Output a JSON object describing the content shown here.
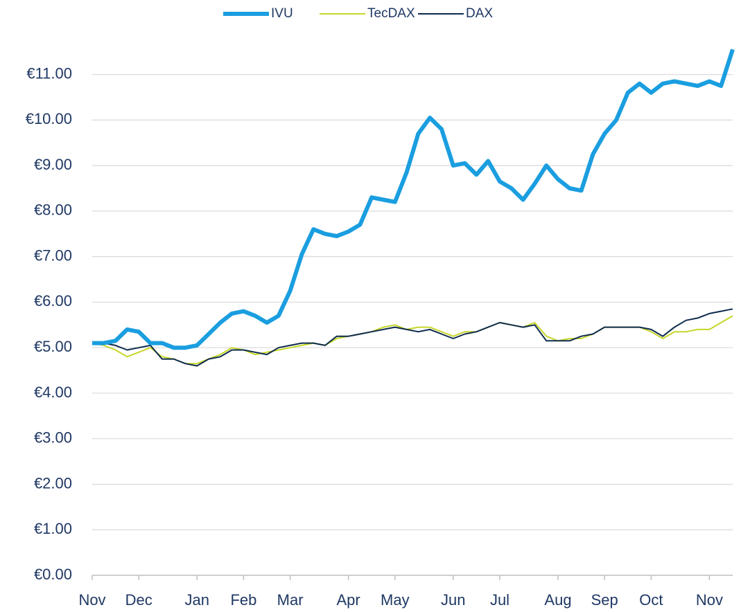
{
  "chart_data": {
    "type": "line",
    "categories": [
      "Nov",
      null,
      null,
      null,
      "Dec",
      null,
      null,
      null,
      null,
      "Jan",
      null,
      null,
      null,
      "Feb",
      null,
      null,
      null,
      "Mar",
      null,
      null,
      null,
      null,
      "Apr",
      null,
      null,
      null,
      "May",
      null,
      null,
      null,
      null,
      "Jun",
      null,
      null,
      null,
      "Jul",
      null,
      null,
      null,
      null,
      "Aug",
      null,
      null,
      null,
      "Sep",
      null,
      null,
      null,
      "Oct",
      null,
      null,
      null,
      null,
      "Nov",
      null,
      null
    ],
    "series": [
      {
        "name": "IVU",
        "color": "#1a9ee0",
        "values": [
          5.1,
          5.1,
          5.15,
          5.4,
          5.35,
          5.1,
          5.1,
          5.0,
          5.0,
          5.05,
          5.3,
          5.55,
          5.75,
          5.8,
          5.7,
          5.55,
          5.7,
          6.25,
          7.05,
          7.6,
          7.5,
          7.45,
          7.55,
          7.7,
          8.3,
          8.25,
          8.2,
          8.85,
          9.7,
          10.05,
          9.8,
          9.0,
          9.05,
          8.8,
          9.1,
          8.65,
          8.5,
          8.25,
          8.6,
          9.0,
          8.7,
          8.5,
          8.45,
          9.25,
          9.7,
          10.0,
          10.6,
          10.8,
          10.6,
          10.8,
          10.85,
          10.8,
          10.75,
          10.85,
          10.75,
          11.55
        ]
      },
      {
        "name": "TecDAX",
        "color": "#c5d628",
        "values": [
          5.1,
          5.05,
          4.95,
          4.8,
          4.9,
          5.0,
          4.8,
          4.75,
          4.65,
          4.65,
          4.75,
          4.85,
          5.0,
          4.95,
          4.85,
          4.9,
          4.95,
          5.0,
          5.05,
          5.1,
          5.05,
          5.2,
          5.25,
          5.3,
          5.35,
          5.45,
          5.5,
          5.4,
          5.45,
          5.45,
          5.35,
          5.25,
          5.35,
          5.35,
          5.45,
          5.55,
          5.5,
          5.45,
          5.55,
          5.25,
          5.15,
          5.2,
          5.2,
          5.3,
          5.45,
          5.45,
          5.45,
          5.45,
          5.35,
          5.2,
          5.35,
          5.35,
          5.4,
          5.4,
          5.55,
          5.7
        ]
      },
      {
        "name": "DAX",
        "color": "#0d2a4d",
        "values": [
          5.1,
          5.1,
          5.05,
          4.95,
          5.0,
          5.05,
          4.75,
          4.75,
          4.65,
          4.6,
          4.75,
          4.8,
          4.95,
          4.95,
          4.9,
          4.85,
          5.0,
          5.05,
          5.1,
          5.1,
          5.05,
          5.25,
          5.25,
          5.3,
          5.35,
          5.4,
          5.45,
          5.4,
          5.35,
          5.4,
          5.3,
          5.2,
          5.3,
          5.35,
          5.45,
          5.55,
          5.5,
          5.45,
          5.5,
          5.15,
          5.15,
          5.15,
          5.25,
          5.3,
          5.45,
          5.45,
          5.45,
          5.45,
          5.4,
          5.25,
          5.45,
          5.6,
          5.65,
          5.75,
          5.8,
          5.85
        ]
      }
    ],
    "ylim": [
      0,
      11.8
    ],
    "yticks": [
      {
        "value": 0,
        "label": "€0.00"
      },
      {
        "value": 1,
        "label": "€1.00"
      },
      {
        "value": 2,
        "label": "€2.00"
      },
      {
        "value": 3,
        "label": "€3.00"
      },
      {
        "value": 4,
        "label": "€4.00"
      },
      {
        "value": 5,
        "label": "€5.00"
      },
      {
        "value": 6,
        "label": "€6.00"
      },
      {
        "value": 7,
        "label": "€7.00"
      },
      {
        "value": 8,
        "label": "€8.00"
      },
      {
        "value": 9,
        "label": "€9.00"
      },
      {
        "value": 10,
        "label": "€10.00"
      },
      {
        "value": 11,
        "label": "€11.00"
      }
    ],
    "grid": true,
    "legend": "top"
  }
}
